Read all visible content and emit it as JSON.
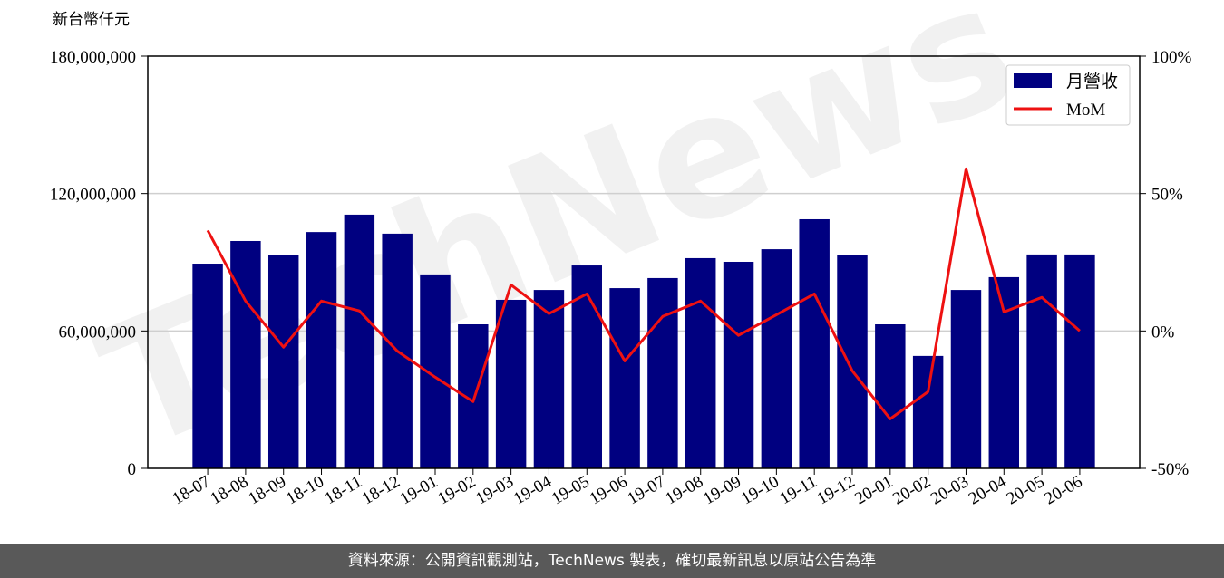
{
  "chart_data": {
    "type": "bar-line",
    "y_label": "新台幣仟元",
    "watermark": "TechNews",
    "categories": [
      "18-07",
      "18-08",
      "18-09",
      "18-10",
      "18-11",
      "18-12",
      "19-01",
      "19-02",
      "19-03",
      "19-04",
      "19-05",
      "19-06",
      "19-07",
      "19-08",
      "19-09",
      "19-10",
      "19-11",
      "19-12",
      "20-01",
      "20-02",
      "20-03",
      "20-04",
      "20-05",
      "20-06"
    ],
    "series": [
      {
        "name": "月營收",
        "type": "bar",
        "color": "#000080",
        "values": [
          89400000,
          99300000,
          93000000,
          103200000,
          110800000,
          102500000,
          84700000,
          62900000,
          73600000,
          77900000,
          88600000,
          78700000,
          83100000,
          91800000,
          90200000,
          95700000,
          108800000,
          93000000,
          62900000,
          49100000,
          77900000,
          83500000,
          93400000,
          93400000
        ]
      },
      {
        "name": "MoM",
        "type": "line",
        "axis": "y2",
        "color": "#ee1111",
        "values": [
          36.6,
          10.9,
          -5.9,
          10.9,
          7.3,
          -7.3,
          -16.8,
          -25.7,
          16.8,
          6.3,
          13.5,
          -10.9,
          5.3,
          10.9,
          -1.6,
          5.9,
          13.5,
          -14.5,
          -32.0,
          -22.1,
          59.0,
          6.9,
          12.2,
          0
        ]
      }
    ],
    "ylim": [
      0,
      180000000
    ],
    "yticks": [
      {
        "value": 0,
        "label": "0"
      },
      {
        "value": 60000000,
        "label": "60,000,000"
      },
      {
        "value": 120000000,
        "label": "120,000,000"
      },
      {
        "value": 180000000,
        "label": "180,000,000"
      }
    ],
    "y2lim": [
      -50,
      100
    ],
    "y2ticks": [
      {
        "value": -50,
        "label": "-50%"
      },
      {
        "value": 0,
        "label": "0%"
      },
      {
        "value": 50,
        "label": "50%"
      },
      {
        "value": 100,
        "label": "100%"
      }
    ],
    "grid": true,
    "legend": "upper right",
    "footer": "資料來源：公開資訊觀測站，TechNews 製表，確切最新訊息以原站公告為準"
  }
}
